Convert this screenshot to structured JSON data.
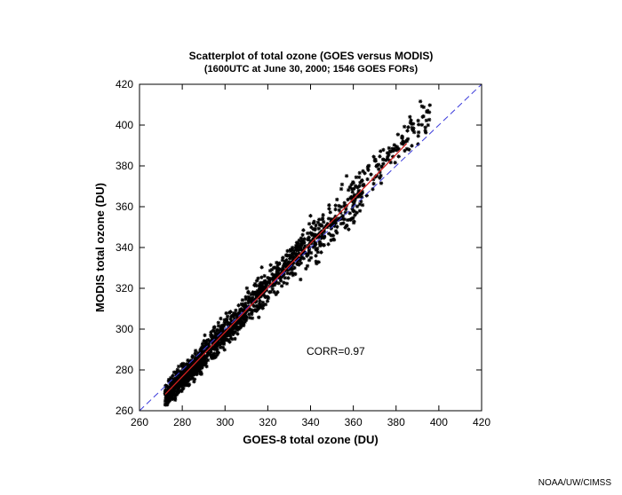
{
  "chart_data": {
    "type": "scatter",
    "title": "Scatterplot of total ozone (GOES versus MODIS)",
    "subtitle": "(1600UTC at June 30, 2000; 1546 GOES FORs)",
    "xlabel": "GOES-8 total ozone (DU)",
    "ylabel": "MODIS total ozone (DU)",
    "xlim": [
      260,
      420
    ],
    "ylim": [
      260,
      420
    ],
    "xticks": [
      "260",
      "280",
      "300",
      "320",
      "340",
      "360",
      "380",
      "400",
      "420"
    ],
    "yticks": [
      "260",
      "280",
      "300",
      "320",
      "340",
      "360",
      "380",
      "400",
      "420"
    ],
    "marker": "*",
    "point_count": 1546,
    "correlation_label": "CORR=0.97",
    "one_to_one_line": {
      "from": [
        260,
        260
      ],
      "to": [
        420,
        420
      ],
      "color": "#3b3bdb",
      "style": "dashed"
    },
    "fit_line": {
      "from": [
        272,
        268
      ],
      "to": [
        385,
        391
      ],
      "color": "#d42020"
    },
    "point_clusters": [
      {
        "x_range": [
          272,
          290
        ],
        "y_center_offset": -1,
        "spread": 5,
        "count": 560
      },
      {
        "x_range": [
          290,
          310
        ],
        "y_center_offset": 0,
        "spread": 6,
        "count": 330
      },
      {
        "x_range": [
          310,
          335
        ],
        "y_center_offset": 1,
        "spread": 7,
        "count": 300
      },
      {
        "x_range": [
          335,
          365
        ],
        "y_center_offset": 0,
        "spread": 9,
        "count": 250
      },
      {
        "x_range": [
          365,
          396
        ],
        "y_center_offset": 2,
        "spread": 8,
        "count": 106
      }
    ],
    "colors": {
      "points": "#000000",
      "axes": "#000000"
    }
  },
  "footer": {
    "credit": "NOAA/UW/CIMSS"
  }
}
